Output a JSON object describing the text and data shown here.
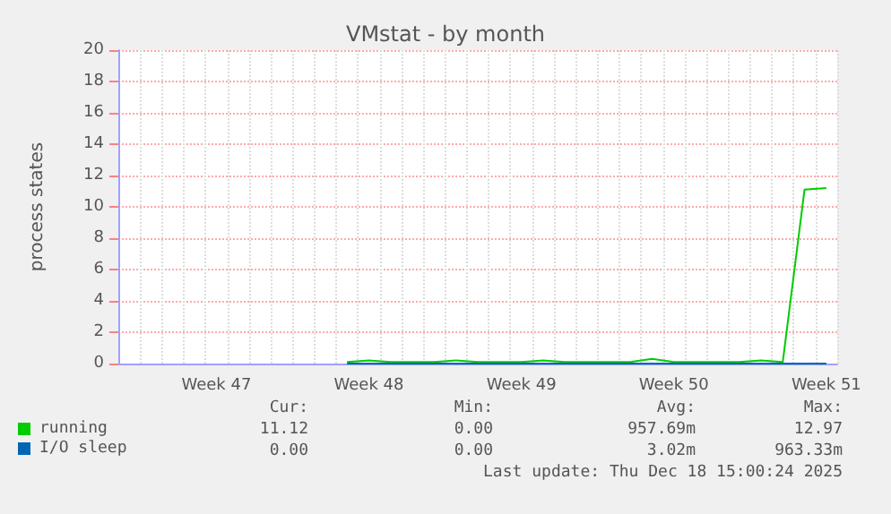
{
  "chart_data": {
    "type": "line",
    "title": "VMstat - by month",
    "ylabel": "process states",
    "categories": [
      null,
      null,
      null,
      null,
      "Week 47",
      null,
      null,
      null,
      null,
      null,
      null,
      "Week 48",
      null,
      null,
      null,
      null,
      null,
      null,
      "Week 49",
      null,
      null,
      null,
      null,
      null,
      null,
      "Week 50",
      null,
      null,
      null,
      null,
      null,
      null,
      "Week 51"
    ],
    "ylim": [
      0,
      20
    ],
    "yticks": [
      0,
      2,
      4,
      6,
      8,
      10,
      12,
      14,
      16,
      18,
      20
    ],
    "grid": true,
    "legend": "bottom left",
    "series": [
      {
        "name": "running",
        "color": "#00cc00",
        "values": [
          null,
          null,
          null,
          null,
          null,
          null,
          null,
          null,
          null,
          null,
          0.1,
          0.2,
          0.1,
          0.1,
          0.1,
          0.2,
          0.1,
          0.1,
          0.1,
          0.2,
          0.1,
          0.1,
          0.1,
          0.1,
          0.3,
          0.1,
          0.1,
          0.1,
          0.1,
          0.2,
          0.1,
          11.1,
          11.2
        ]
      },
      {
        "name": "I/O sleep",
        "color": "#0066b3",
        "values": [
          null,
          null,
          null,
          null,
          null,
          null,
          null,
          null,
          null,
          null,
          0,
          0,
          0,
          0,
          0,
          0,
          0,
          0,
          0,
          0,
          0,
          0,
          0,
          0,
          0,
          0,
          0,
          0,
          0,
          0,
          0,
          0,
          0
        ]
      }
    ],
    "annotations": [
      "Cur:",
      "Min:",
      "Avg:",
      "Max:",
      "11.12",
      "0.00",
      "957.69m",
      "12.97",
      "0.00",
      "0.00",
      "3.02m",
      "963.33m",
      "Last update: Thu Dec 18 15:00:24 2025"
    ]
  }
}
